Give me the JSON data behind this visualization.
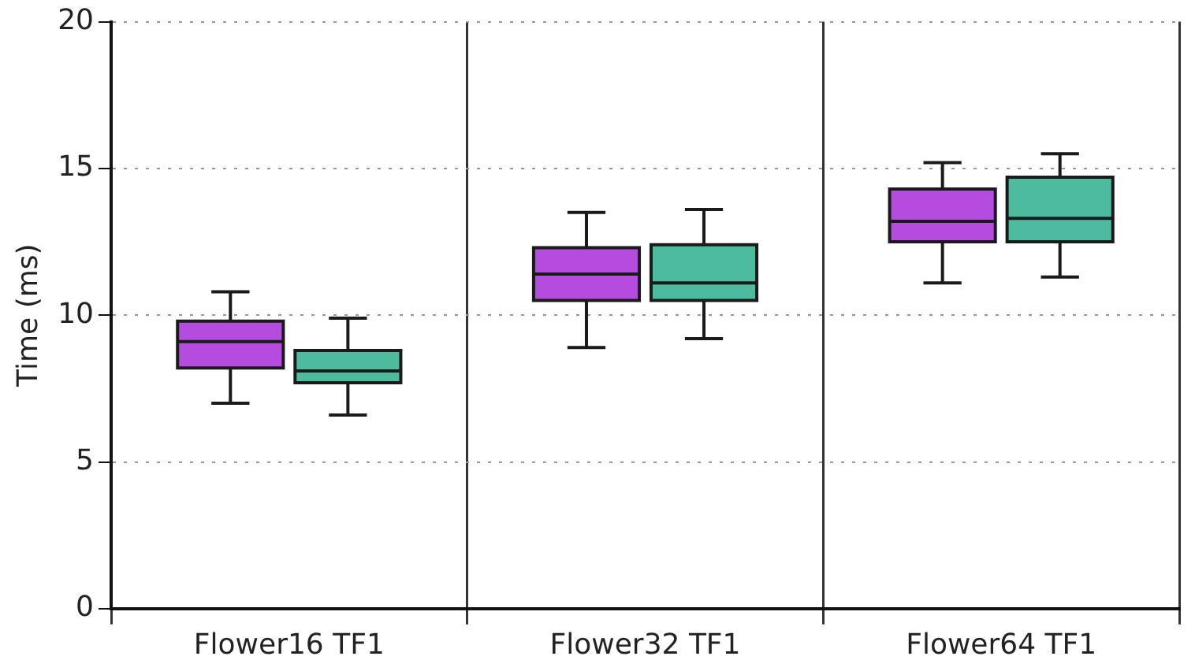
{
  "chart_data": {
    "type": "box",
    "ylabel": "Time (ms)",
    "categories": [
      "Flower16 TF1",
      "Flower32 TF1",
      "Flower64 TF1"
    ],
    "ylim": [
      0,
      20
    ],
    "yticks": [
      0,
      5,
      10,
      15,
      20
    ],
    "grid": true,
    "series": [
      {
        "color": "#b44ddf",
        "boxes": [
          {
            "low": 7.0,
            "q1": 8.2,
            "median": 9.1,
            "q3": 9.8,
            "high": 10.8
          },
          {
            "low": 8.9,
            "q1": 10.5,
            "median": 11.4,
            "q3": 12.3,
            "high": 13.5
          },
          {
            "low": 11.1,
            "q1": 12.5,
            "median": 13.2,
            "q3": 14.3,
            "high": 15.2
          }
        ]
      },
      {
        "color": "#4dbb9e",
        "boxes": [
          {
            "low": 6.6,
            "q1": 7.7,
            "median": 8.1,
            "q3": 8.8,
            "high": 9.9
          },
          {
            "low": 9.2,
            "q1": 10.5,
            "median": 11.1,
            "q3": 12.4,
            "high": 13.6
          },
          {
            "low": 11.3,
            "q1": 12.5,
            "median": 13.3,
            "q3": 14.7,
            "high": 15.5
          }
        ]
      }
    ]
  }
}
